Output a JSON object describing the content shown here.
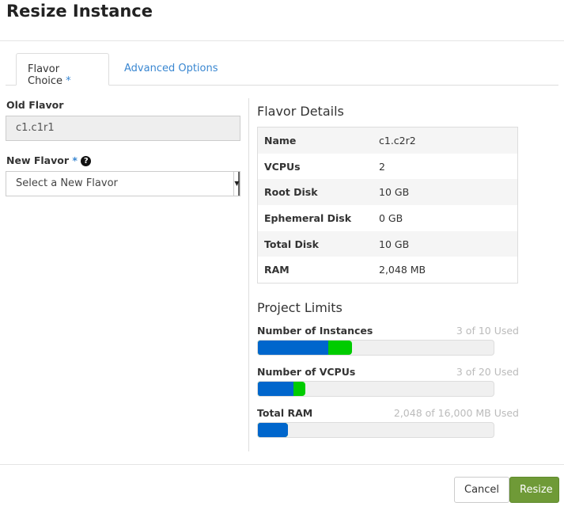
{
  "title": "Resize Instance",
  "tabs": [
    {
      "label": "Flavor Choice",
      "required": "*"
    },
    {
      "label": "Advanced Options"
    }
  ],
  "old_flavor": {
    "label": "Old Flavor",
    "value": "c1.c1r1"
  },
  "new_flavor": {
    "label": "New Flavor",
    "required": "*",
    "help_icon": "question-circle-icon",
    "placeholder": "Select a New Flavor"
  },
  "details": {
    "heading": "Flavor Details",
    "rows": [
      {
        "k": "Name",
        "v": "c1.c2r2"
      },
      {
        "k": "VCPUs",
        "v": "2"
      },
      {
        "k": "Root Disk",
        "v": "10 GB"
      },
      {
        "k": "Ephemeral Disk",
        "v": "0 GB"
      },
      {
        "k": "Total Disk",
        "v": "10 GB"
      },
      {
        "k": "RAM",
        "v": "2,048 MB"
      }
    ]
  },
  "limits": {
    "heading": "Project Limits",
    "items": [
      {
        "name": "Number of Instances",
        "used": "3 of 10 Used",
        "current_pct": 30,
        "added_pct": 10
      },
      {
        "name": "Number of VCPUs",
        "used": "3 of 20 Used",
        "current_pct": 15,
        "added_pct": 5
      },
      {
        "name": "Total RAM",
        "used": "2,048 of 16,000 MB Used",
        "current_pct": 12.8,
        "added_pct": 0
      }
    ]
  },
  "colors": {
    "current": "#0066cc",
    "added": "#00cc00",
    "primary": "#6f9a37"
  },
  "buttons": {
    "cancel": "Cancel",
    "resize": "Resize"
  }
}
